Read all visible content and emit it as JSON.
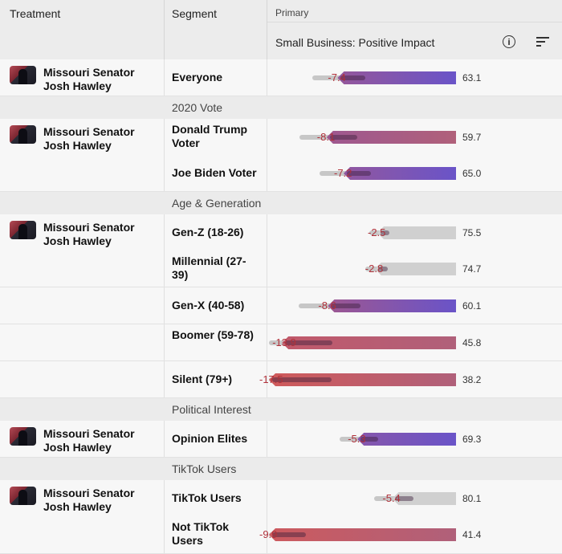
{
  "header": {
    "treatment_label": "Treatment",
    "segment_label": "Segment",
    "primary_label": "Primary",
    "metric_label": "Small Business: Positive Impact",
    "info_icon": "info-icon",
    "sort_icon": "sort-icon"
  },
  "treatment_name_line1": "Missouri Senator",
  "treatment_name_line2": "Josh Hawley",
  "groups": {
    "vote": "2020 Vote",
    "age": "Age & Generation",
    "interest": "Political Interest",
    "tiktok": "TikTok Users"
  },
  "rows": [
    {
      "segment": "Everyone",
      "delta": "-7.4",
      "total": "63.1"
    },
    {
      "segment": "Donald Trump Voter",
      "delta": "-8.1",
      "total": "59.7"
    },
    {
      "segment": "Joe Biden Voter",
      "delta": "-7.2",
      "total": "65.0"
    },
    {
      "segment": "Gen-Z (18-26)",
      "delta": "-2.5",
      "total": "75.5"
    },
    {
      "segment": "Millennial (27-39)",
      "delta": "-2.8",
      "total": "74.7"
    },
    {
      "segment": "Gen-X (40-58)",
      "delta": "-8.6",
      "total": "60.1"
    },
    {
      "segment": "Boomer (59-78)",
      "delta": "-13.9",
      "total": "45.8"
    },
    {
      "segment": "Silent (79+)",
      "delta": "-17.5",
      "total": "38.2"
    },
    {
      "segment": "Opinion Elites",
      "delta": "-5.3",
      "total": "69.3"
    },
    {
      "segment": "TikTok Users",
      "delta": "-5.4",
      "total": "80.1"
    },
    {
      "segment": "Not TikTok Users",
      "delta": "-9.9",
      "total": "41.4"
    }
  ],
  "colors": {
    "purple": "#6b55c8",
    "red": "#cf5a5a",
    "gray": "#c7c7c7"
  }
}
